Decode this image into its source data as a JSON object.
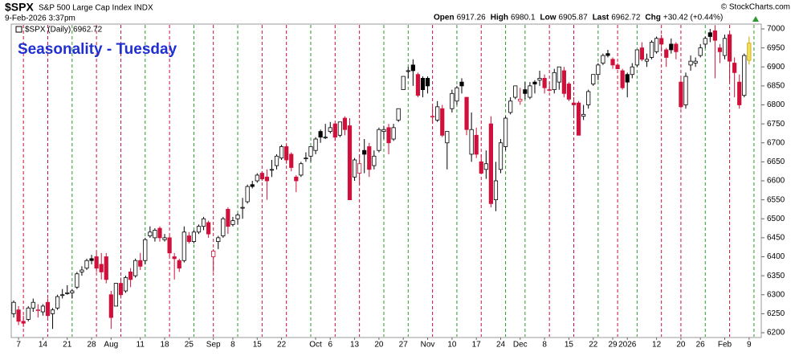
{
  "header": {
    "symbol": "$SPX",
    "name": "S&P 500 Large Cap Index INDX",
    "timestamp": "9-Feb-2026 3:37pm",
    "credit": "© StockCharts.com",
    "stats": [
      {
        "label": "Open",
        "value": 6917.26
      },
      {
        "label": "High",
        "value": 6980.1
      },
      {
        "label": "Low",
        "value": 6905.87
      },
      {
        "label": "Last",
        "value": 6962.72
      },
      {
        "label": "Chg",
        "value": "+30.42 (+0.44%)"
      }
    ]
  },
  "chart_data": {
    "type": "candlestick",
    "title": "Seasonality - Tuesday",
    "legend": "$SPX (Daily) 6962.72",
    "up_color": "#000000",
    "down_color": "#d0103a",
    "last_color": "#f2dc5d",
    "line_up_color": "#2a9a2a",
    "line_down_color": "#d0103a",
    "ylim": [
      6200,
      7000
    ],
    "yticks": [
      6200,
      6250,
      6300,
      6350,
      6400,
      6450,
      6500,
      6550,
      6600,
      6650,
      6700,
      6750,
      6800,
      6850,
      6900,
      6950,
      7000
    ],
    "xlim": [
      -0.5,
      153.5
    ],
    "xticks": [
      {
        "value": 1,
        "label": "7"
      },
      {
        "value": 6,
        "label": "14"
      },
      {
        "value": 11,
        "label": "21"
      },
      {
        "value": 16,
        "label": "28"
      },
      {
        "value": 20,
        "label": "Aug"
      },
      {
        "value": 26,
        "label": "11"
      },
      {
        "value": 31,
        "label": "18"
      },
      {
        "value": 36,
        "label": "25"
      },
      {
        "value": 41,
        "label": "Sep"
      },
      {
        "value": 45,
        "label": "8"
      },
      {
        "value": 50,
        "label": "15"
      },
      {
        "value": 55,
        "label": "22"
      },
      {
        "value": 62,
        "label": "Oct"
      },
      {
        "value": 65,
        "label": "6"
      },
      {
        "value": 70,
        "label": "13"
      },
      {
        "value": 75,
        "label": "20"
      },
      {
        "value": 80,
        "label": "27"
      },
      {
        "value": 85,
        "label": "Nov"
      },
      {
        "value": 90,
        "label": "10"
      },
      {
        "value": 95,
        "label": "17"
      },
      {
        "value": 100,
        "label": "24"
      },
      {
        "value": 104,
        "label": "Dec"
      },
      {
        "value": 109,
        "label": "8"
      },
      {
        "value": 114,
        "label": "15"
      },
      {
        "value": 119,
        "label": "22"
      },
      {
        "value": 123,
        "label": "29"
      },
      {
        "value": 126,
        "label": "2026"
      },
      {
        "value": 132,
        "label": "12"
      },
      {
        "value": 137,
        "label": "20"
      },
      {
        "value": 141,
        "label": "26"
      },
      {
        "value": 146,
        "label": "Feb"
      },
      {
        "value": 151,
        "label": "9"
      }
    ],
    "tuesdays": [
      2,
      7,
      12,
      17,
      22,
      27,
      32,
      37,
      41,
      46,
      51,
      56,
      61,
      66,
      71,
      76,
      81,
      86,
      91,
      96,
      101,
      105,
      110,
      115,
      120,
      124,
      128,
      133,
      137,
      142,
      147,
      152
    ],
    "tuesday_up": [
      false,
      false,
      true,
      false,
      false,
      true,
      false,
      true,
      false,
      true,
      false,
      false,
      true,
      false,
      false,
      true,
      true,
      false,
      true,
      false,
      true,
      true,
      false,
      false,
      true,
      false,
      true,
      false,
      false,
      true,
      false,
      true
    ],
    "candles": [
      [
        6250,
        6285,
        6240,
        6280
      ],
      [
        6260,
        6270,
        6220,
        6230
      ],
      [
        6230,
        6245,
        6215,
        6225
      ],
      [
        6235,
        6270,
        6230,
        6265
      ],
      [
        6265,
        6290,
        6255,
        6280
      ],
      [
        6260,
        6275,
        6240,
        6260
      ],
      [
        6255,
        6275,
        6245,
        6270
      ],
      [
        6280,
        6290,
        6240,
        6245
      ],
      [
        6250,
        6265,
        6210,
        6260
      ],
      [
        6265,
        6300,
        6260,
        6295
      ],
      [
        6300,
        6315,
        6290,
        6300
      ],
      [
        6305,
        6325,
        6300,
        6305
      ],
      [
        6305,
        6315,
        6290,
        6310
      ],
      [
        6320,
        6360,
        6315,
        6355
      ],
      [
        6360,
        6375,
        6350,
        6365
      ],
      [
        6370,
        6395,
        6365,
        6390
      ],
      [
        6395,
        6405,
        6380,
        6390
      ],
      [
        6400,
        6410,
        6360,
        6370
      ],
      [
        6380,
        6410,
        6340,
        6360
      ],
      [
        6400,
        6410,
        6330,
        6340
      ],
      [
        6300,
        6310,
        6210,
        6240
      ],
      [
        6270,
        6330,
        6270,
        6330
      ],
      [
        6330,
        6345,
        6290,
        6300
      ],
      [
        6310,
        6350,
        6305,
        6345
      ],
      [
        6360,
        6370,
        6320,
        6340
      ],
      [
        6350,
        6395,
        6345,
        6390
      ],
      [
        6390,
        6410,
        6365,
        6375
      ],
      [
        6390,
        6450,
        6380,
        6445
      ],
      [
        6455,
        6480,
        6450,
        6465
      ],
      [
        6450,
        6475,
        6440,
        6470
      ],
      [
        6475,
        6480,
        6440,
        6450
      ],
      [
        6445,
        6460,
        6440,
        6450
      ],
      [
        6450,
        6455,
        6400,
        6410
      ],
      [
        6400,
        6410,
        6340,
        6395
      ],
      [
        6390,
        6395,
        6360,
        6370
      ],
      [
        6390,
        6480,
        6385,
        6465
      ],
      [
        6455,
        6465,
        6435,
        6440
      ],
      [
        6440,
        6470,
        6435,
        6465
      ],
      [
        6465,
        6485,
        6460,
        6480
      ],
      [
        6480,
        6505,
        6470,
        6500
      ],
      [
        6490,
        6495,
        6450,
        6460
      ],
      [
        6400,
        6420,
        6360,
        6415
      ],
      [
        6440,
        6455,
        6420,
        6450
      ],
      [
        6455,
        6505,
        6450,
        6500
      ],
      [
        6525,
        6530,
        6460,
        6480
      ],
      [
        6485,
        6505,
        6480,
        6495
      ],
      [
        6500,
        6515,
        6485,
        6510
      ],
      [
        6530,
        6555,
        6500,
        6530
      ],
      [
        6545,
        6590,
        6540,
        6585
      ],
      [
        6590,
        6600,
        6580,
        6585
      ],
      [
        6600,
        6620,
        6595,
        6615
      ],
      [
        6620,
        6625,
        6600,
        6605
      ],
      [
        6610,
        6630,
        6550,
        6600
      ],
      [
        6630,
        6655,
        6610,
        6630
      ],
      [
        6640,
        6670,
        6630,
        6665
      ],
      [
        6660,
        6695,
        6655,
        6690
      ],
      [
        6690,
        6695,
        6645,
        6655
      ],
      [
        6670,
        6675,
        6625,
        6635
      ],
      [
        6610,
        6615,
        6570,
        6600
      ],
      [
        6615,
        6650,
        6610,
        6645
      ],
      [
        6660,
        6675,
        6650,
        6660
      ],
      [
        6665,
        6690,
        6650,
        6690
      ],
      [
        6680,
        6715,
        6670,
        6710
      ],
      [
        6730,
        6735,
        6700,
        6715
      ],
      [
        6715,
        6750,
        6710,
        6715
      ],
      [
        6730,
        6755,
        6725,
        6740
      ],
      [
        6750,
        6750,
        6705,
        6715
      ],
      [
        6720,
        6755,
        6715,
        6755
      ],
      [
        6765,
        6770,
        6720,
        6735
      ],
      [
        6745,
        6765,
        6550,
        6550
      ],
      [
        6610,
        6660,
        6600,
        6655
      ],
      [
        6620,
        6670,
        6590,
        6645
      ],
      [
        6680,
        6710,
        6620,
        6670
      ],
      [
        6690,
        6700,
        6610,
        6630
      ],
      [
        6640,
        6680,
        6630,
        6665
      ],
      [
        6680,
        6740,
        6675,
        6735
      ],
      [
        6730,
        6745,
        6710,
        6735
      ],
      [
        6740,
        6750,
        6670,
        6700
      ],
      [
        6710,
        6750,
        6705,
        6740
      ],
      [
        6760,
        6790,
        6755,
        6790
      ],
      [
        6840,
        6875,
        6840,
        6875
      ],
      [
        6890,
        6900,
        6870,
        6890
      ],
      [
        6905,
        6920,
        6850,
        6890
      ],
      [
        6880,
        6885,
        6820,
        6825
      ],
      [
        6870,
        6875,
        6820,
        6840
      ],
      [
        6870,
        6875,
        6830,
        6850
      ],
      [
        6770,
        6795,
        6750,
        6770
      ],
      [
        6760,
        6810,
        6755,
        6795
      ],
      [
        6790,
        6800,
        6715,
        6720
      ],
      [
        6700,
        6730,
        6630,
        6730
      ],
      [
        6790,
        6840,
        6780,
        6830
      ],
      [
        6810,
        6850,
        6800,
        6845
      ],
      [
        6860,
        6870,
        6830,
        6850
      ],
      [
        6820,
        6820,
        6720,
        6735
      ],
      [
        6670,
        6780,
        6650,
        6735
      ],
      [
        6720,
        6740,
        6660,
        6670
      ],
      [
        6650,
        6670,
        6620,
        6620
      ],
      [
        6630,
        6680,
        6605,
        6645
      ],
      [
        6750,
        6770,
        6530,
        6540
      ],
      [
        6550,
        6650,
        6520,
        6600
      ],
      [
        6630,
        6710,
        6620,
        6700
      ],
      [
        6690,
        6770,
        6680,
        6765
      ],
      [
        6780,
        6820,
        6775,
        6810
      ],
      [
        6820,
        6850,
        6815,
        6850
      ],
      [
        6810,
        6845,
        6800,
        6815
      ],
      [
        6840,
        6860,
        6815,
        6830
      ],
      [
        6820,
        6860,
        6815,
        6850
      ],
      [
        6860,
        6865,
        6830,
        6855
      ],
      [
        6865,
        6890,
        6850,
        6870
      ],
      [
        6870,
        6880,
        6830,
        6845
      ],
      [
        6840,
        6860,
        6835,
        6840
      ],
      [
        6840,
        6895,
        6830,
        6885
      ],
      [
        6860,
        6900,
        6840,
        6900
      ],
      [
        6890,
        6900,
        6820,
        6830
      ],
      [
        6855,
        6860,
        6810,
        6815
      ],
      [
        6805,
        6820,
        6770,
        6800
      ],
      [
        6805,
        6810,
        6720,
        6720
      ],
      [
        6770,
        6800,
        6760,
        6775
      ],
      [
        6800,
        6840,
        6790,
        6835
      ],
      [
        6855,
        6880,
        6850,
        6880
      ],
      [
        6880,
        6910,
        6865,
        6905
      ],
      [
        6910,
        6935,
        6905,
        6930
      ],
      [
        6935,
        6945,
        6925,
        6930
      ],
      [
        6920,
        6925,
        6895,
        6905
      ],
      [
        6905,
        6910,
        6895,
        6895
      ],
      [
        6890,
        6895,
        6840,
        6845
      ],
      [
        6880,
        6885,
        6820,
        6860
      ],
      [
        6880,
        6910,
        6870,
        6900
      ],
      [
        6905,
        6945,
        6900,
        6945
      ],
      [
        6950,
        6965,
        6915,
        6920
      ],
      [
        6915,
        6935,
        6900,
        6920
      ],
      [
        6925,
        6970,
        6920,
        6965
      ],
      [
        6940,
        6980,
        6935,
        6975
      ],
      [
        6975,
        6985,
        6940,
        6960
      ],
      [
        6945,
        6950,
        6900,
        6925
      ],
      [
        6960,
        6975,
        6935,
        6945
      ],
      [
        6960,
        6965,
        6920,
        6940
      ],
      [
        6860,
        6870,
        6790,
        6795
      ],
      [
        6800,
        6885,
        6790,
        6875
      ],
      [
        6905,
        6930,
        6890,
        6915
      ],
      [
        6910,
        6925,
        6900,
        6915
      ],
      [
        6930,
        6960,
        6925,
        6950
      ],
      [
        6960,
        6980,
        6950,
        6975
      ],
      [
        6990,
        7000,
        6965,
        6980
      ],
      [
        6995,
        7010,
        6870,
        6970
      ],
      [
        6950,
        6960,
        6910,
        6940
      ],
      [
        6930,
        6985,
        6920,
        6975
      ],
      [
        6985,
        6990,
        6860,
        6915
      ],
      [
        6910,
        6925,
        6820,
        6885
      ],
      [
        6860,
        6880,
        6790,
        6800
      ],
      [
        6825,
        6935,
        6820,
        6930
      ],
      [
        6917.26,
        6980.1,
        6905.87,
        6962.72
      ]
    ]
  }
}
